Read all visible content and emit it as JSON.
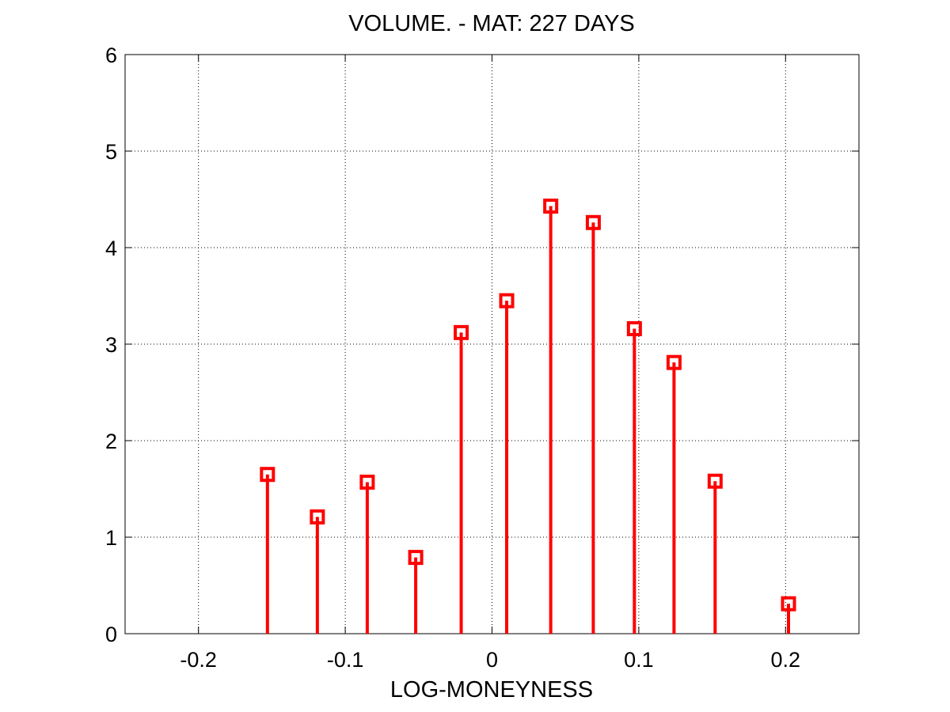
{
  "chart_data": {
    "type": "stem",
    "title": "VOLUME. - MAT: 227 DAYS",
    "xlabel": "LOG-MONEYNESS",
    "ylabel": "",
    "xlim": [
      -0.25,
      0.25
    ],
    "ylim": [
      0,
      6
    ],
    "xticks": [
      -0.2,
      -0.1,
      0,
      0.1,
      0.2
    ],
    "xtick_labels": [
      "-0.2",
      "-0.1",
      "0",
      "0.1",
      "0.2"
    ],
    "yticks": [
      0,
      1,
      2,
      3,
      4,
      5,
      6
    ],
    "ytick_labels": [
      "0",
      "1",
      "2",
      "3",
      "4",
      "5",
      "6"
    ],
    "grid": true,
    "marker": "square",
    "color": "#ff0000",
    "x": [
      -0.153,
      -0.119,
      -0.085,
      -0.052,
      -0.021,
      0.01,
      0.04,
      0.069,
      0.097,
      0.124,
      0.152,
      0.202
    ],
    "y": [
      1.65,
      1.21,
      1.57,
      0.79,
      3.12,
      3.45,
      4.43,
      4.26,
      3.16,
      2.81,
      1.58,
      0.31
    ]
  }
}
